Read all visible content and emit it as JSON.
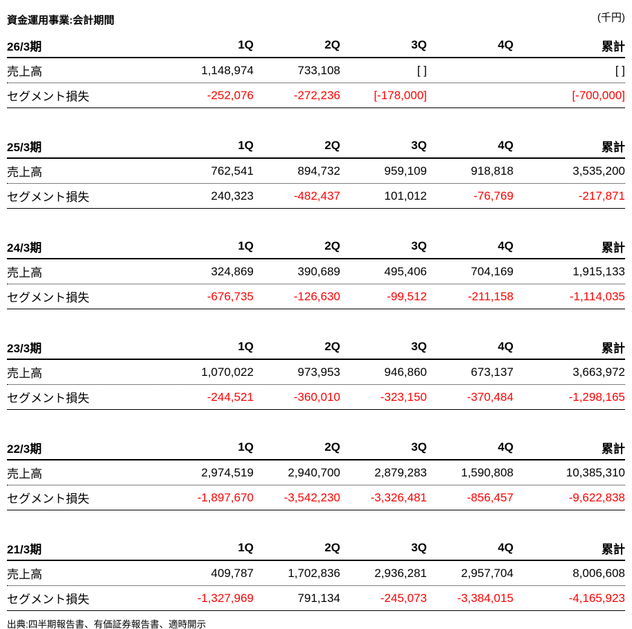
{
  "title": "資金運用事業:会計期間",
  "unit": "(千円)",
  "columns": [
    "1Q",
    "2Q",
    "3Q",
    "4Q",
    "累計"
  ],
  "labels": {
    "sales": "売上高",
    "loss": "セグメント損失"
  },
  "colors": {
    "negative": "#ff0000",
    "text": "#000000"
  },
  "source": "出典:四半期報告書、有価証券報告書、適時開示",
  "tables": [
    {
      "period": "26/3期",
      "sales": [
        "1,148,974",
        "733,108",
        "[ ]",
        "",
        "[ ]"
      ],
      "loss": [
        "-252,076",
        "-272,236",
        "[-178,000]",
        "",
        "[-700,000]"
      ],
      "loss_colors": [
        "#ff0000",
        "#ff0000",
        "#ff0000",
        "",
        "#ff0000"
      ]
    },
    {
      "period": "25/3期",
      "sales": [
        "762,541",
        "894,732",
        "959,109",
        "918,818",
        "3,535,200"
      ],
      "loss": [
        "240,323",
        "-482,437",
        "101,012",
        "-76,769",
        "-217,871"
      ],
      "loss_colors": [
        "#000000",
        "#ff0000",
        "#000000",
        "#ff0000",
        "#ff0000"
      ]
    },
    {
      "period": "24/3期",
      "sales": [
        "324,869",
        "390,689",
        "495,406",
        "704,169",
        "1,915,133"
      ],
      "loss": [
        "-676,735",
        "-126,630",
        "-99,512",
        "-211,158",
        "-1,114,035"
      ],
      "loss_colors": [
        "#ff0000",
        "#ff0000",
        "#ff0000",
        "#ff0000",
        "#ff0000"
      ]
    },
    {
      "period": "23/3期",
      "sales": [
        "1,070,022",
        "973,953",
        "946,860",
        "673,137",
        "3,663,972"
      ],
      "loss": [
        "-244,521",
        "-360,010",
        "-323,150",
        "-370,484",
        "-1,298,165"
      ],
      "loss_colors": [
        "#ff0000",
        "#ff0000",
        "#ff0000",
        "#ff0000",
        "#ff0000"
      ]
    },
    {
      "period": "22/3期",
      "sales": [
        "2,974,519",
        "2,940,700",
        "2,879,283",
        "1,590,808",
        "10,385,310"
      ],
      "loss": [
        "-1,897,670",
        "-3,542,230",
        "-3,326,481",
        "-856,457",
        "-9,622,838"
      ],
      "loss_colors": [
        "#ff0000",
        "#ff0000",
        "#ff0000",
        "#ff0000",
        "#ff0000"
      ]
    },
    {
      "period": "21/3期",
      "sales": [
        "409,787",
        "1,702,836",
        "2,936,281",
        "2,957,704",
        "8,006,608"
      ],
      "loss": [
        "-1,327,969",
        "791,134",
        "-245,073",
        "-3,384,015",
        "-4,165,923"
      ],
      "loss_colors": [
        "#ff0000",
        "#000000",
        "#ff0000",
        "#ff0000",
        "#ff0000"
      ]
    }
  ],
  "chart_data": [
    {
      "type": "table",
      "title": "26/3期",
      "columns": [
        "1Q",
        "2Q",
        "3Q",
        "4Q",
        "累計"
      ],
      "rows": [
        {
          "label": "売上高",
          "values": [
            1148974,
            733108,
            null,
            null,
            null
          ]
        },
        {
          "label": "セグメント損失",
          "values": [
            -252076,
            -272236,
            -178000,
            null,
            -700000
          ]
        }
      ]
    },
    {
      "type": "table",
      "title": "25/3期",
      "columns": [
        "1Q",
        "2Q",
        "3Q",
        "4Q",
        "累計"
      ],
      "rows": [
        {
          "label": "売上高",
          "values": [
            762541,
            894732,
            959109,
            918818,
            3535200
          ]
        },
        {
          "label": "セグメント損失",
          "values": [
            240323,
            -482437,
            101012,
            -76769,
            -217871
          ]
        }
      ]
    },
    {
      "type": "table",
      "title": "24/3期",
      "columns": [
        "1Q",
        "2Q",
        "3Q",
        "4Q",
        "累計"
      ],
      "rows": [
        {
          "label": "売上高",
          "values": [
            324869,
            390689,
            495406,
            704169,
            1915133
          ]
        },
        {
          "label": "セグメント損失",
          "values": [
            -676735,
            -126630,
            -99512,
            -211158,
            -1114035
          ]
        }
      ]
    },
    {
      "type": "table",
      "title": "23/3期",
      "columns": [
        "1Q",
        "2Q",
        "3Q",
        "4Q",
        "累計"
      ],
      "rows": [
        {
          "label": "売上高",
          "values": [
            1070022,
            973953,
            946860,
            673137,
            3663972
          ]
        },
        {
          "label": "セグメント損失",
          "values": [
            -244521,
            -360010,
            -323150,
            -370484,
            -1298165
          ]
        }
      ]
    },
    {
      "type": "table",
      "title": "22/3期",
      "columns": [
        "1Q",
        "2Q",
        "3Q",
        "4Q",
        "累計"
      ],
      "rows": [
        {
          "label": "売上高",
          "values": [
            2974519,
            2940700,
            2879283,
            1590808,
            10385310
          ]
        },
        {
          "label": "セグメント損失",
          "values": [
            -1897670,
            -3542230,
            -3326481,
            -856457,
            -9622838
          ]
        }
      ]
    },
    {
      "type": "table",
      "title": "21/3期",
      "columns": [
        "1Q",
        "2Q",
        "3Q",
        "4Q",
        "累計"
      ],
      "rows": [
        {
          "label": "売上高",
          "values": [
            409787,
            1702836,
            2936281,
            2957704,
            8006608
          ]
        },
        {
          "label": "セグメント損失",
          "values": [
            -1327969,
            791134,
            -245073,
            -3384015,
            -4165923
          ]
        }
      ]
    }
  ]
}
